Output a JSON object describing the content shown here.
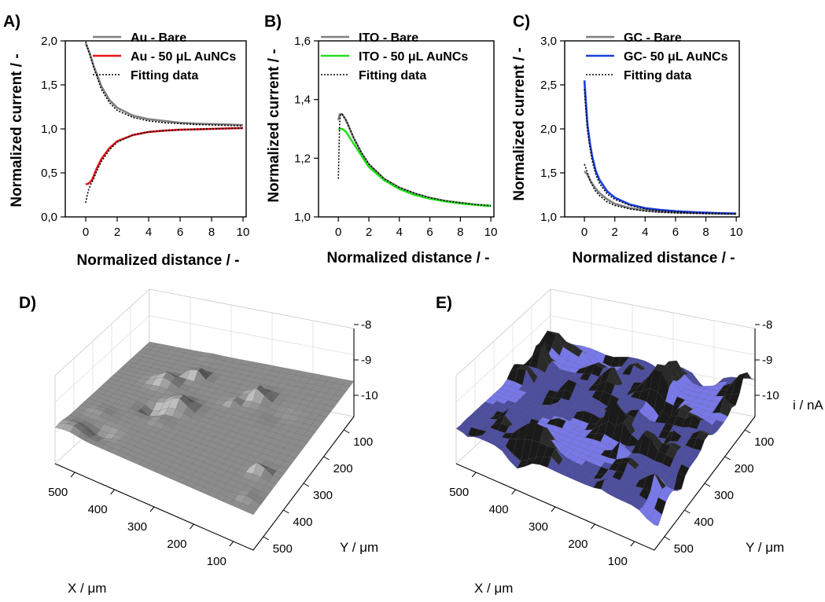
{
  "charts": [
    {
      "panel": "A)",
      "type": "line",
      "xlabel": "Normalized distance / -",
      "ylabel": "Normalized current / -",
      "xlim": [
        -1.3,
        10.2
      ],
      "ylim": [
        0.0,
        2.0
      ],
      "xticks": [
        0,
        2,
        4,
        6,
        8,
        10
      ],
      "xticklabels": [
        "0",
        "2",
        "4",
        "6",
        "8",
        "10"
      ],
      "yticks": [
        0.0,
        0.5,
        1.0,
        1.5,
        2.0
      ],
      "yticklabels": [
        "0,0",
        "0,5",
        "1,0",
        "1,5",
        "2,0"
      ],
      "legend_position": "top-left",
      "series": [
        {
          "name": "Au - Bare",
          "color": "#808080",
          "style": "solid",
          "x": [
            0,
            0.25,
            0.5,
            1,
            1.5,
            2,
            3,
            4,
            5,
            6,
            7,
            8,
            9,
            10
          ],
          "y": [
            1.97,
            1.86,
            1.72,
            1.48,
            1.33,
            1.24,
            1.15,
            1.11,
            1.09,
            1.07,
            1.06,
            1.055,
            1.05,
            1.045
          ]
        },
        {
          "name": "Au - 50 μL AuNCs",
          "color": "#e8141b",
          "style": "solid",
          "x": [
            0,
            0.2,
            0.4,
            0.7,
            1,
            1.5,
            2,
            3,
            4,
            5,
            6,
            7,
            8,
            9,
            10
          ],
          "y": [
            0.37,
            0.38,
            0.42,
            0.55,
            0.66,
            0.78,
            0.86,
            0.93,
            0.965,
            0.98,
            0.99,
            0.995,
            1.0,
            1.005,
            1.01
          ]
        },
        {
          "name": "Fitting data",
          "color": "#000000",
          "style": "dotted",
          "segments": [
            {
              "x": [
                0,
                0.25,
                0.5,
                1,
                1.5,
                2,
                3,
                4,
                5,
                6,
                7,
                8,
                9,
                10
              ],
              "y": [
                1.99,
                1.85,
                1.7,
                1.45,
                1.3,
                1.21,
                1.13,
                1.09,
                1.07,
                1.06,
                1.05,
                1.045,
                1.04,
                1.035
              ]
            },
            {
              "x": [
                0,
                0.1,
                0.2,
                0.35,
                0.5,
                0.7,
                1,
                1.5,
                2,
                3,
                4,
                5,
                6,
                7,
                8,
                9,
                10
              ],
              "y": [
                0.16,
                0.25,
                0.32,
                0.38,
                0.43,
                0.52,
                0.63,
                0.76,
                0.85,
                0.93,
                0.965,
                0.98,
                0.99,
                0.995,
                1.0,
                1.005,
                1.01
              ]
            }
          ]
        }
      ]
    },
    {
      "panel": "B)",
      "type": "line",
      "xlabel": "Normalized distance / -",
      "ylabel": "Normalized current / -",
      "xlim": [
        -1.3,
        10.2
      ],
      "ylim": [
        1.0,
        1.6
      ],
      "xticks": [
        0,
        2,
        4,
        6,
        8,
        10
      ],
      "xticklabels": [
        "0",
        "2",
        "4",
        "6",
        "8",
        "10"
      ],
      "yticks": [
        1.0,
        1.2,
        1.4,
        1.6
      ],
      "yticklabels": [
        "1,0",
        "1,2",
        "1,4",
        "1,6"
      ],
      "legend_position": "top-left",
      "series": [
        {
          "name": "ITO - Bare",
          "color": "#808080",
          "style": "solid",
          "x": [
            0,
            0.1,
            0.25,
            0.5,
            0.75,
            1,
            1.5,
            2,
            3,
            4,
            5,
            6,
            7,
            8,
            9,
            10
          ],
          "y": [
            1.33,
            1.35,
            1.35,
            1.33,
            1.3,
            1.27,
            1.22,
            1.18,
            1.13,
            1.1,
            1.08,
            1.065,
            1.055,
            1.048,
            1.042,
            1.038
          ]
        },
        {
          "name": "ITO - 50 μL AuNCs",
          "color": "#22e01a",
          "style": "solid",
          "x": [
            0,
            0.1,
            0.25,
            0.5,
            0.75,
            1,
            1.5,
            2,
            3,
            4,
            5,
            6,
            7,
            8,
            9,
            10
          ],
          "y": [
            1.3,
            1.3,
            1.3,
            1.29,
            1.27,
            1.25,
            1.21,
            1.17,
            1.125,
            1.095,
            1.075,
            1.062,
            1.053,
            1.046,
            1.041,
            1.037
          ]
        },
        {
          "name": "Fitting data",
          "color": "#000000",
          "style": "dotted",
          "segments": [
            {
              "x": [
                0,
                0.05,
                0.1,
                0.15,
                0.25,
                0.5,
                0.75,
                1,
                1.5,
                2,
                3,
                4,
                5,
                6,
                7,
                8,
                9,
                10
              ],
              "y": [
                1.13,
                1.25,
                1.33,
                1.35,
                1.35,
                1.33,
                1.3,
                1.27,
                1.22,
                1.18,
                1.13,
                1.1,
                1.08,
                1.065,
                1.055,
                1.048,
                1.042,
                1.038
              ]
            }
          ]
        }
      ]
    },
    {
      "panel": "C)",
      "type": "line",
      "xlabel": "Normalized distance / -",
      "ylabel": "Normalized current / -",
      "xlim": [
        -1.3,
        10.2
      ],
      "ylim": [
        1.0,
        3.0
      ],
      "xticks": [
        0,
        2,
        4,
        6,
        8,
        10
      ],
      "xticklabels": [
        "0",
        "2",
        "4",
        "6",
        "8",
        "10"
      ],
      "yticks": [
        1.0,
        1.5,
        2.0,
        2.5,
        3.0
      ],
      "yticklabels": [
        "1,0",
        "1,5",
        "2,0",
        "2,5",
        "3,0"
      ],
      "legend_position": "top-left",
      "series": [
        {
          "name": "GC - Bare",
          "color": "#808080",
          "style": "solid",
          "x": [
            0,
            0.2,
            0.4,
            0.7,
            1,
            1.5,
            2,
            3,
            4,
            5,
            6,
            7,
            8,
            9,
            10
          ],
          "y": [
            1.52,
            1.48,
            1.41,
            1.33,
            1.27,
            1.2,
            1.15,
            1.1,
            1.075,
            1.06,
            1.052,
            1.046,
            1.042,
            1.038,
            1.035
          ]
        },
        {
          "name": "GC- 50 μL AuNCs",
          "color": "#1a3fe0",
          "style": "solid",
          "x": [
            0,
            0.1,
            0.2,
            0.35,
            0.5,
            0.75,
            1,
            1.5,
            2,
            3,
            4,
            5,
            6,
            7,
            8,
            9,
            10
          ],
          "y": [
            2.55,
            2.3,
            2.05,
            1.85,
            1.7,
            1.52,
            1.42,
            1.29,
            1.22,
            1.14,
            1.1,
            1.08,
            1.065,
            1.055,
            1.048,
            1.042,
            1.038
          ]
        },
        {
          "name": "Fitting data",
          "color": "#000000",
          "style": "dotted",
          "segments": [
            {
              "x": [
                0,
                0.1,
                0.2,
                0.35,
                0.5,
                0.75,
                1,
                1.5,
                2,
                3,
                4,
                5,
                6,
                7,
                8,
                9,
                10
              ],
              "y": [
                2.45,
                2.2,
                1.98,
                1.8,
                1.65,
                1.48,
                1.38,
                1.26,
                1.2,
                1.13,
                1.09,
                1.07,
                1.058,
                1.05,
                1.044,
                1.04,
                1.036
              ]
            },
            {
              "x": [
                0,
                0.2,
                0.4,
                0.7,
                1,
                1.5,
                2,
                3,
                4,
                5,
                6,
                7,
                8,
                9,
                10
              ],
              "y": [
                1.6,
                1.5,
                1.4,
                1.3,
                1.24,
                1.17,
                1.13,
                1.09,
                1.065,
                1.052,
                1.045,
                1.04,
                1.037,
                1.034,
                1.032
              ]
            }
          ]
        }
      ]
    }
  ],
  "surfaces": [
    {
      "panel": "D)",
      "type": "surface3d",
      "xlabel": "X / μm",
      "ylabel": "Y / μm",
      "zlabel": "",
      "xticklabels": [
        "100",
        "200",
        "300",
        "400",
        "500"
      ],
      "yticklabels": [
        "100",
        "200",
        "300",
        "400",
        "500"
      ],
      "zticklabels": [
        "-10",
        "-9",
        "-8"
      ],
      "colors": [
        "#5a5a5a",
        "#8c8c8c",
        "#b4b4b4"
      ]
    },
    {
      "panel": "E)",
      "type": "surface3d",
      "xlabel": "X / μm",
      "ylabel": "Y / μm",
      "zlabel": "i / nA",
      "xticklabels": [
        "100",
        "200",
        "300",
        "400",
        "500"
      ],
      "yticklabels": [
        "100",
        "200",
        "300",
        "400",
        "500"
      ],
      "zticklabels": [
        "-10",
        "-9",
        "-8"
      ],
      "colors": [
        "#2a2a2a",
        "#4d4e9e",
        "#7878e8"
      ]
    }
  ]
}
